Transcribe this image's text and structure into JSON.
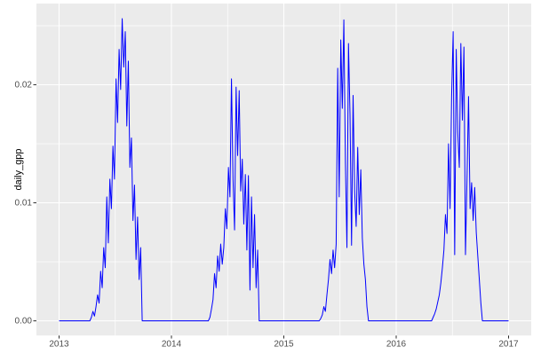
{
  "chart_data": {
    "type": "line",
    "title": "",
    "xlabel": "",
    "ylabel": "daily_gpp",
    "x_tick_labels": [
      "2013",
      "2014",
      "2015",
      "2016",
      "2017"
    ],
    "x_tick_values": [
      2013,
      2014,
      2015,
      2016,
      2017
    ],
    "y_tick_labels": [
      "0.00",
      "0.01",
      "0.02"
    ],
    "y_tick_values": [
      0,
      0.01,
      0.02
    ],
    "x_minor_values": [
      2013.5,
      2014.5,
      2015.5,
      2016.5
    ],
    "y_minor_values": [
      0.005,
      0.015,
      0.025
    ],
    "xlim": [
      2012.8,
      2017.2
    ],
    "ylim": [
      -0.00128,
      0.02688
    ],
    "grid": true,
    "legend": "none",
    "style": {
      "panel_bg": "#EBEBEB",
      "grid_major_color": "#FFFFFF",
      "grid_minor_color": "#FFFFFF",
      "tick_label_color": "#4D4D4D",
      "axis_title_color": "#000000",
      "tick_mark_color": "#333333",
      "outer_bg": "#FFFFFF"
    },
    "series": [
      {
        "name": "daily_gpp",
        "color": "#0000FF",
        "x_start": 2013,
        "x_step_years": 0.0136986,
        "values": [
          0,
          0,
          0,
          0,
          0,
          0,
          0,
          0,
          0,
          0,
          0,
          0,
          0,
          0,
          0,
          0,
          0,
          0,
          0,
          0,
          0,
          0.0003,
          0.0008,
          0.0004,
          0.0012,
          0.0022,
          0.0015,
          0.0042,
          0.0028,
          0.0062,
          0.0045,
          0.0105,
          0.0066,
          0.012,
          0.0095,
          0.0148,
          0.012,
          0.0205,
          0.0168,
          0.023,
          0.0196,
          0.0256,
          0.0215,
          0.0245,
          0.0165,
          0.022,
          0.013,
          0.0155,
          0.0085,
          0.0115,
          0.0052,
          0.0088,
          0.0035,
          0.0062,
          0,
          0,
          0,
          0,
          0,
          0,
          0,
          0,
          0,
          0,
          0,
          0,
          0,
          0,
          0,
          0,
          0,
          0,
          0,
          0,
          0,
          0,
          0,
          0,
          0,
          0,
          0,
          0,
          0,
          0,
          0,
          0,
          0,
          0,
          0,
          0,
          0,
          0,
          0,
          0,
          0,
          0,
          0,
          0,
          0.0003,
          0.001,
          0.0018,
          0.004,
          0.0028,
          0.0055,
          0.0042,
          0.0065,
          0.0048,
          0.0062,
          0.0095,
          0.0078,
          0.013,
          0.0105,
          0.0205,
          0.012,
          0.0077,
          0.0198,
          0.014,
          0.0195,
          0.011,
          0.0137,
          0.0082,
          0.0124,
          0.006,
          0.0123,
          0.0026,
          0.0105,
          0.0045,
          0.009,
          0.0028,
          0.006,
          0,
          0,
          0,
          0,
          0,
          0,
          0,
          0,
          0,
          0,
          0,
          0,
          0,
          0,
          0,
          0,
          0,
          0,
          0,
          0,
          0,
          0,
          0,
          0,
          0,
          0,
          0,
          0,
          0,
          0,
          0,
          0,
          0,
          0,
          0,
          0,
          0,
          0,
          0,
          0,
          0.0002,
          0.0005,
          0.0012,
          0.0008,
          0.0022,
          0.0035,
          0.0052,
          0.004,
          0.006,
          0.0045,
          0.0065,
          0.0214,
          0.0105,
          0.0238,
          0.018,
          0.0255,
          0.0135,
          0.0062,
          0.0235,
          0.0175,
          0.0064,
          0.0191,
          0.011,
          0.008,
          0.0147,
          0.009,
          0.0128,
          0.007,
          0.0048,
          0.0035,
          0.0012,
          0,
          0,
          0,
          0,
          0,
          0,
          0,
          0,
          0,
          0,
          0,
          0,
          0,
          0,
          0,
          0,
          0,
          0,
          0,
          0,
          0,
          0,
          0,
          0,
          0,
          0,
          0,
          0,
          0,
          0,
          0,
          0,
          0,
          0,
          0,
          0,
          0,
          0,
          0,
          0,
          0,
          0,
          0.0003,
          0.0006,
          0.001,
          0.0016,
          0.0022,
          0.0032,
          0.0045,
          0.006,
          0.009,
          0.0074,
          0.015,
          0.0095,
          0.019,
          0.0245,
          0.0056,
          0.023,
          0.016,
          0.013,
          0.0235,
          0.017,
          0.0232,
          0.0056,
          0.012,
          0.019,
          0.0095,
          0.0117,
          0.0085,
          0.0113,
          0.0075,
          0.0055,
          0.0035,
          0.0015,
          0,
          0,
          0,
          0,
          0,
          0,
          0,
          0,
          0,
          0,
          0,
          0,
          0,
          0,
          0,
          0,
          0,
          0
        ]
      }
    ]
  }
}
